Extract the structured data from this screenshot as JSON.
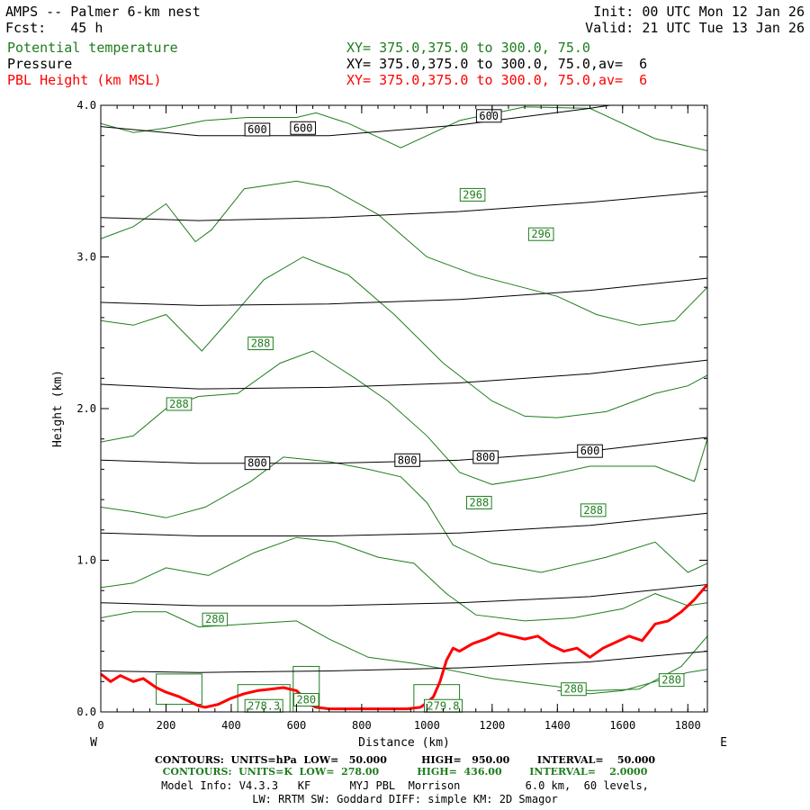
{
  "header": {
    "title": "AMPS -- Palmer 6-km nest",
    "fcst": "Fcst:   45 h",
    "init": "Init: 00 UTC Mon 12 Jan 26",
    "valid": "Valid: 21 UTC Tue 13 Jan 26",
    "field1": "Potential temperature",
    "field2": "Pressure",
    "field3": "PBL Height (km MSL)",
    "xy1": "XY= 375.0,375.0 to 300.0, 75.0",
    "xy2": "XY= 375.0,375.0 to 300.0, 75.0,av=  6",
    "xy3": "XY= 375.0,375.0 to 300.0, 75.0,av=  6"
  },
  "footer": {
    "contours_hpa": "CONTOURS:  UNITS=hPa  LOW=   50.000          HIGH=   950.00        INTERVAL=    50.000",
    "contours_k": "CONTOURS:  UNITS=K  LOW=  278.00           HIGH=  436.00        INTERVAL=    2.0000",
    "model_info": "Model Info: V4.3.3   KF      MYJ PBL  Morrison          6.0 km,  60 levels,",
    "model_info2": "LW: RRTM SW: Goddard DIFF: simple KM: 2D Smagor"
  },
  "colors": {
    "theta": "#1e7d1e",
    "pressure": "#000000",
    "pbl": "#ff0000"
  },
  "chart_data": {
    "type": "line",
    "xlabel": "Distance (km)",
    "ylabel": "Height (km)",
    "xlim": [
      0,
      1860
    ],
    "ylim": [
      0.0,
      4.0
    ],
    "xticks": [
      0,
      200,
      400,
      600,
      800,
      1000,
      1200,
      1400,
      1600,
      1800
    ],
    "xticks_minor_step": 50,
    "yticks": [
      0.0,
      1.0,
      2.0,
      3.0,
      4.0
    ],
    "yticks_minor_step": 0.2,
    "west_label": "W",
    "east_label": "E",
    "pressure_contours": [
      {
        "x": [
          0,
          300,
          700,
          1100,
          1500,
          1860
        ],
        "y": [
          3.86,
          3.8,
          3.8,
          3.87,
          3.98,
          4.1
        ]
      },
      {
        "x": [
          0,
          300,
          700,
          1100,
          1500,
          1860
        ],
        "y": [
          3.26,
          3.24,
          3.26,
          3.3,
          3.36,
          3.43
        ]
      },
      {
        "x": [
          0,
          300,
          700,
          1100,
          1500,
          1860
        ],
        "y": [
          2.7,
          2.68,
          2.69,
          2.72,
          2.78,
          2.86
        ]
      },
      {
        "x": [
          0,
          300,
          700,
          1100,
          1500,
          1860
        ],
        "y": [
          2.16,
          2.13,
          2.14,
          2.17,
          2.23,
          2.32
        ]
      },
      {
        "x": [
          0,
          300,
          700,
          1100,
          1500,
          1860
        ],
        "y": [
          1.66,
          1.64,
          1.64,
          1.66,
          1.72,
          1.81
        ]
      },
      {
        "x": [
          0,
          300,
          700,
          1100,
          1500,
          1860
        ],
        "y": [
          1.18,
          1.16,
          1.16,
          1.18,
          1.23,
          1.31
        ]
      },
      {
        "x": [
          0,
          300,
          700,
          1100,
          1500,
          1860
        ],
        "y": [
          0.72,
          0.7,
          0.7,
          0.72,
          0.76,
          0.84
        ]
      },
      {
        "x": [
          0,
          300,
          700,
          1100,
          1500,
          1860
        ],
        "y": [
          0.27,
          0.26,
          0.27,
          0.29,
          0.33,
          0.4
        ]
      }
    ],
    "pressure_labels": [
      {
        "text": "600",
        "x": 480,
        "y": 3.84
      },
      {
        "text": "600",
        "x": 620,
        "y": 3.85
      },
      {
        "text": "600",
        "x": 1190,
        "y": 3.93
      },
      {
        "text": "800",
        "x": 480,
        "y": 1.64
      },
      {
        "text": "800",
        "x": 940,
        "y": 1.66
      },
      {
        "text": "800",
        "x": 1180,
        "y": 1.68
      },
      {
        "text": "600",
        "x": 1500,
        "y": 1.72
      }
    ],
    "theta_contours": [
      {
        "x": [
          0,
          100,
          200,
          320,
          450,
          600,
          660,
          760,
          920,
          1100,
          1300,
          1500,
          1700,
          1860
        ],
        "y": [
          3.88,
          3.82,
          3.85,
          3.9,
          3.92,
          3.92,
          3.95,
          3.88,
          3.72,
          3.9,
          3.99,
          3.98,
          3.78,
          3.7
        ]
      },
      {
        "x": [
          0,
          100,
          200,
          290,
          340,
          440,
          600,
          700,
          850,
          1000,
          1150,
          1400,
          1520,
          1650,
          1760,
          1860
        ],
        "y": [
          3.12,
          3.2,
          3.35,
          3.1,
          3.18,
          3.45,
          3.5,
          3.46,
          3.28,
          3.0,
          2.88,
          2.74,
          2.62,
          2.55,
          2.58,
          2.8
        ]
      },
      {
        "x": [
          0,
          100,
          200,
          310,
          400,
          500,
          620,
          760,
          900,
          1050,
          1200,
          1300,
          1400,
          1550,
          1700,
          1800,
          1860
        ],
        "y": [
          2.58,
          2.55,
          2.62,
          2.38,
          2.6,
          2.85,
          3.0,
          2.88,
          2.62,
          2.3,
          2.05,
          1.95,
          1.94,
          1.98,
          2.1,
          2.15,
          2.22
        ]
      },
      {
        "x": [
          0,
          100,
          200,
          300,
          420,
          550,
          650,
          780,
          880,
          1000,
          1100,
          1200,
          1350,
          1500,
          1700,
          1820,
          1860
        ],
        "y": [
          1.78,
          1.82,
          2.0,
          2.08,
          2.1,
          2.3,
          2.38,
          2.2,
          2.05,
          1.82,
          1.58,
          1.5,
          1.55,
          1.62,
          1.62,
          1.52,
          1.8
        ]
      },
      {
        "x": [
          0,
          100,
          200,
          320,
          460,
          560,
          700,
          820,
          920,
          1000,
          1080,
          1200,
          1350,
          1550,
          1700,
          1800,
          1860
        ],
        "y": [
          1.35,
          1.32,
          1.28,
          1.35,
          1.52,
          1.68,
          1.65,
          1.6,
          1.55,
          1.38,
          1.1,
          0.98,
          0.92,
          1.02,
          1.12,
          0.92,
          0.98
        ]
      },
      {
        "x": [
          0,
          100,
          200,
          330,
          470,
          600,
          720,
          850,
          960,
          1060,
          1150,
          1300,
          1450,
          1600,
          1700,
          1800,
          1860
        ],
        "y": [
          0.82,
          0.85,
          0.95,
          0.9,
          1.05,
          1.15,
          1.12,
          1.02,
          0.98,
          0.78,
          0.64,
          0.6,
          0.62,
          0.68,
          0.78,
          0.7,
          0.72
        ]
      },
      {
        "x": [
          0,
          100,
          200,
          300,
          450,
          600,
          700,
          820,
          960,
          1060,
          1200,
          1350,
          1500,
          1650,
          1780,
          1860
        ],
        "y": [
          0.62,
          0.66,
          0.66,
          0.56,
          0.58,
          0.6,
          0.48,
          0.36,
          0.32,
          0.28,
          0.22,
          0.18,
          0.14,
          0.15,
          0.3,
          0.5
        ]
      },
      {
        "x": [
          1400,
          1500,
          1600,
          1700,
          1800,
          1860
        ],
        "y": [
          0.14,
          0.12,
          0.14,
          0.2,
          0.26,
          0.28
        ]
      }
    ],
    "theta_labels": [
      {
        "text": "296",
        "x": 1140,
        "y": 3.41
      },
      {
        "text": "296",
        "x": 1350,
        "y": 3.15
      },
      {
        "text": "288",
        "x": 490,
        "y": 2.43
      },
      {
        "text": "288",
        "x": 240,
        "y": 2.03
      },
      {
        "text": "288",
        "x": 1160,
        "y": 1.38
      },
      {
        "text": "288",
        "x": 1510,
        "y": 1.33
      },
      {
        "text": "280",
        "x": 350,
        "y": 0.61
      },
      {
        "text": "280",
        "x": 1450,
        "y": 0.15
      },
      {
        "text": "280",
        "x": 1750,
        "y": 0.21
      },
      {
        "text": "278.3",
        "x": 500,
        "y": 0.04
      },
      {
        "text": "280",
        "x": 630,
        "y": 0.08
      },
      {
        "text": "279.8",
        "x": 1050,
        "y": 0.04
      }
    ],
    "theta_boxes": [
      {
        "x0": 170,
        "x1": 310,
        "y0": 0.05,
        "y1": 0.25
      },
      {
        "x0": 420,
        "x1": 580,
        "y0": 0.0,
        "y1": 0.18
      },
      {
        "x0": 590,
        "x1": 670,
        "y0": 0.0,
        "y1": 0.3
      },
      {
        "x0": 960,
        "x1": 1100,
        "y0": 0.0,
        "y1": 0.18
      }
    ],
    "pbl_height": {
      "name": "PBL Height (km MSL)",
      "x": [
        0,
        30,
        60,
        100,
        130,
        170,
        200,
        240,
        280,
        300,
        320,
        360,
        400,
        440,
        480,
        520,
        560,
        600,
        620,
        640,
        660,
        700,
        760,
        800,
        860,
        900,
        940,
        980,
        1000,
        1020,
        1040,
        1060,
        1080,
        1100,
        1140,
        1180,
        1220,
        1260,
        1300,
        1340,
        1380,
        1420,
        1460,
        1500,
        1540,
        1580,
        1620,
        1660,
        1700,
        1740,
        1780,
        1820,
        1860
      ],
      "y": [
        0.25,
        0.2,
        0.24,
        0.2,
        0.22,
        0.16,
        0.13,
        0.1,
        0.06,
        0.04,
        0.03,
        0.05,
        0.09,
        0.12,
        0.14,
        0.15,
        0.16,
        0.14,
        0.1,
        0.05,
        0.03,
        0.02,
        0.02,
        0.02,
        0.02,
        0.02,
        0.02,
        0.03,
        0.06,
        0.1,
        0.2,
        0.34,
        0.42,
        0.4,
        0.45,
        0.48,
        0.52,
        0.5,
        0.48,
        0.5,
        0.44,
        0.4,
        0.42,
        0.36,
        0.42,
        0.46,
        0.5,
        0.47,
        0.58,
        0.6,
        0.66,
        0.74,
        0.84
      ]
    }
  }
}
